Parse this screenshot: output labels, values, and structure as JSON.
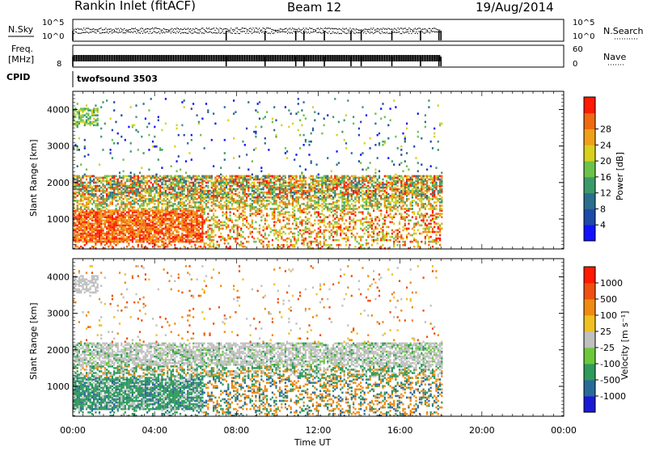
{
  "header": {
    "station": "Rankin Inlet (fitACF)",
    "beam": "Beam 12",
    "date": "19/Aug/2014"
  },
  "sky_panel": {
    "left_label": "N.Sky",
    "right_label": "N.Search",
    "left_ticks": [
      "10^5",
      "10^0"
    ],
    "right_ticks": [
      "10^5",
      "10^0"
    ]
  },
  "freq_panel": {
    "left_label_1": "Freq.",
    "left_label_2": "[MHz]",
    "left_tick": "8",
    "right_label": "Nave",
    "right_ticks": [
      "60",
      "0"
    ]
  },
  "cpid": {
    "label": "CPID",
    "program": "twofsound 3503"
  },
  "chart_data": [
    {
      "type": "heatmap",
      "title": "",
      "xlabel": "",
      "ylabel": "Slant Range [km]",
      "xlim_hours": [
        0,
        24
      ],
      "ylim_km": [
        180,
        4500
      ],
      "yticks": [
        "1000",
        "2000",
        "3000",
        "4000"
      ],
      "colorbar": {
        "label": "Power [dB]",
        "ticks": [
          "4",
          "8",
          "12",
          "16",
          "20",
          "24",
          "28"
        ],
        "colors": [
          "#1212ff",
          "#1e4aa8",
          "#2b6e8e",
          "#3c9a6a",
          "#6cc24a",
          "#d8d01c",
          "#f0a018",
          "#f06a10",
          "#ff1a00"
        ]
      },
      "data_end_hour": 18.0,
      "scatter_bands": [
        {
          "range_km": [
            300,
            1200
          ],
          "hours": [
            0,
            6.3
          ],
          "dominant": "high power"
        },
        {
          "range_km": [
            1000,
            2200
          ],
          "hours": [
            0,
            18
          ],
          "dominant": "mixed"
        },
        {
          "range_km": [
            3600,
            4000
          ],
          "hours": [
            0,
            1.2
          ],
          "dominant": "moderate"
        }
      ]
    },
    {
      "type": "heatmap",
      "title": "",
      "xlabel": "Time UT",
      "ylabel": "Slant Range [km]",
      "xlim_hours": [
        0,
        24
      ],
      "ylim_km": [
        180,
        4500
      ],
      "yticks": [
        "1000",
        "2000",
        "3000",
        "4000"
      ],
      "xticks": [
        "00:00",
        "04:00",
        "08:00",
        "12:00",
        "16:00",
        "20:00",
        "00:00"
      ],
      "colorbar": {
        "label": "Velocity [m s⁻¹]",
        "ticks": [
          "1000",
          "500",
          "100",
          "25",
          "-25",
          "-100",
          "-500",
          "-1000"
        ],
        "colors": [
          "#1a1ad6",
          "#2a6a9a",
          "#2e9a5c",
          "#6cc83a",
          "#c0c0c0",
          "#f0c020",
          "#f08a10",
          "#f05010",
          "#ff1a00"
        ]
      },
      "data_end_hour": 18.0,
      "ground_scatter_band_km": [
        1550,
        2200
      ]
    }
  ]
}
